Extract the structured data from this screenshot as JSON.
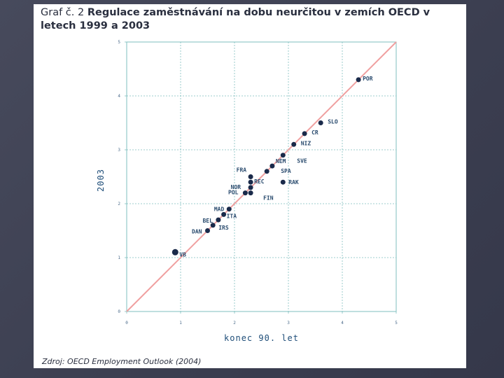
{
  "title": {
    "prefix": "Graf č. 2 ",
    "bold": "Regulace zaměstnávání na dobu neurčitou v zemích OECD v letech 1999 a 2003"
  },
  "source": "Zdroj: OECD Employment Outlook (2004)",
  "colors": {
    "slide_bg": "#3f4254",
    "panel": "#ffffff",
    "grid": "#7fbfbf",
    "diagonal": "#f0a0a0",
    "point": "#1a2a4a",
    "label": "#2b4c6f",
    "axis_title": "#1f4e79"
  },
  "chart_data": {
    "type": "scatter",
    "title": "Regulace zaměstnávání na dobu neurčitou v zemích OECD v letech 1999 a 2003",
    "xlabel": "konec 90. let",
    "ylabel": "2003",
    "xlim": [
      0,
      5
    ],
    "ylim": [
      0,
      5
    ],
    "xticks": [
      "0",
      "1",
      "2",
      "3",
      "4",
      "5"
    ],
    "yticks": [
      "0",
      "1",
      "2",
      "3",
      "4",
      "5"
    ],
    "grid": true,
    "reference_line": "y = x",
    "points": [
      {
        "label": "POR",
        "x": 4.3,
        "y": 4.3
      },
      {
        "label": "SLO",
        "x": 3.6,
        "y": 3.5
      },
      {
        "label": "CR",
        "x": 3.3,
        "y": 3.3
      },
      {
        "label": "NIZ",
        "x": 3.1,
        "y": 3.1
      },
      {
        "label": "SVE",
        "x": 2.9,
        "y": 2.9
      },
      {
        "label": "NEM",
        "x": 2.7,
        "y": 2.7
      },
      {
        "label": "SPA",
        "x": 2.6,
        "y": 2.6
      },
      {
        "label": "RAK",
        "x": 2.9,
        "y": 2.4
      },
      {
        "label": "FRA",
        "x": 2.3,
        "y": 2.5
      },
      {
        "label": "REC",
        "x": 2.3,
        "y": 2.4
      },
      {
        "label": "NOR",
        "x": 2.3,
        "y": 2.3
      },
      {
        "label": "POL",
        "x": 2.2,
        "y": 2.2
      },
      {
        "label": "FIN",
        "x": 2.3,
        "y": 2.2
      },
      {
        "label": "MAD",
        "x": 1.9,
        "y": 1.9
      },
      {
        "label": "ITA",
        "x": 1.8,
        "y": 1.8
      },
      {
        "label": "BEL",
        "x": 1.7,
        "y": 1.7
      },
      {
        "label": "IRS",
        "x": 1.6,
        "y": 1.6
      },
      {
        "label": "DAN",
        "x": 1.5,
        "y": 1.5
      },
      {
        "label": "VB",
        "x": 0.9,
        "y": 1.1
      }
    ]
  }
}
